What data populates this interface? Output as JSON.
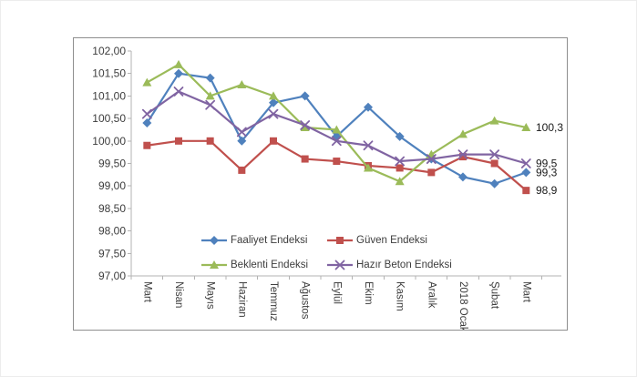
{
  "chart_data": {
    "type": "line",
    "title": "",
    "categories": [
      "Mart",
      "Nisan",
      "Mayıs",
      "Haziran",
      "Temmuz",
      "Ağustos",
      "Eylül",
      "Ekim",
      "Kasım",
      "Aralık",
      "2018 Ocak",
      "Şubat",
      "Mart"
    ],
    "series": [
      {
        "name": "Faaliyet Endeksi",
        "marker": "diamond",
        "color": "#4F81BD",
        "values": [
          100.4,
          101.5,
          101.4,
          100.0,
          100.85,
          101.0,
          100.1,
          100.75,
          100.1,
          99.6,
          99.2,
          99.05,
          99.3
        ],
        "end_label": "99,3"
      },
      {
        "name": "Güven Endeksi",
        "marker": "square",
        "color": "#C0504D",
        "values": [
          99.9,
          100.0,
          100.0,
          99.35,
          100.0,
          99.6,
          99.55,
          99.45,
          99.4,
          99.3,
          99.65,
          99.5,
          98.9
        ],
        "end_label": "98,9"
      },
      {
        "name": "Beklenti Endeksi",
        "marker": "triangle",
        "color": "#9BBB59",
        "values": [
          101.3,
          101.7,
          101.0,
          101.25,
          101.0,
          100.3,
          100.25,
          99.4,
          99.1,
          99.7,
          100.15,
          100.45,
          100.3
        ],
        "end_label": "100,3"
      },
      {
        "name": "Hazır Beton Endeksi",
        "marker": "x",
        "color": "#8064A2",
        "values": [
          100.6,
          101.1,
          100.8,
          100.2,
          100.6,
          100.35,
          100.0,
          99.9,
          99.55,
          99.6,
          99.7,
          99.7,
          99.5
        ],
        "end_label": "99,5"
      }
    ],
    "y_axis": {
      "min": 97,
      "max": 102,
      "step": 0.5,
      "tick_labels": [
        "102,00",
        "101,50",
        "101,00",
        "100,50",
        "100,00",
        "99,50",
        "99,00",
        "98,50",
        "98,00",
        "97,50",
        "97,00"
      ]
    },
    "x_axis": {
      "label_rotation_deg": 90
    },
    "legend_position": "bottom-inside",
    "grid": false,
    "axis_color": "#b3b3b3",
    "text_color": "#3d3d3d"
  }
}
